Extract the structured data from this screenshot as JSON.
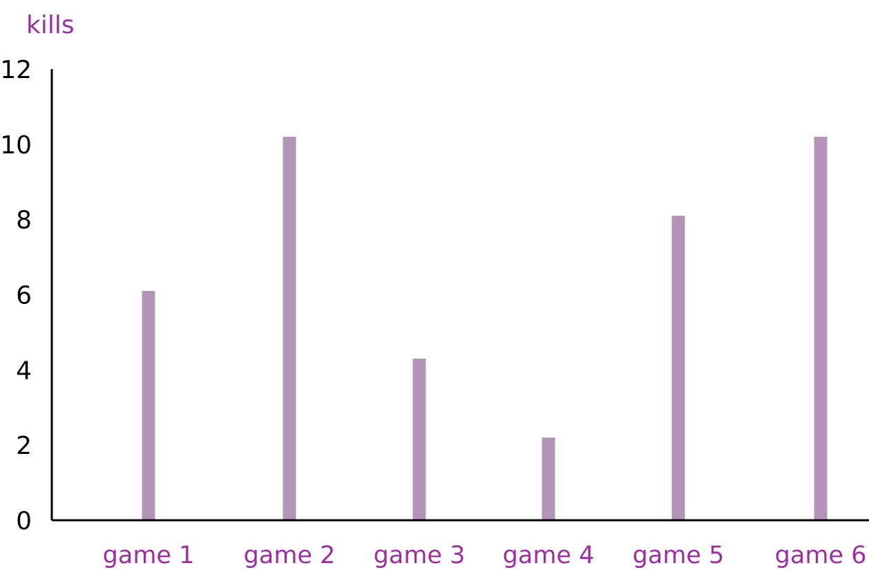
{
  "chart_data": {
    "type": "bar",
    "ylabel": "kills",
    "xlabel": "",
    "title": "",
    "categories": [
      "game 1",
      "game 2",
      "game 3",
      "game 4",
      "game 5",
      "game 6"
    ],
    "values": [
      6.1,
      10.2,
      4.3,
      2.2,
      8.1,
      10.2
    ],
    "ylim": [
      0,
      12
    ],
    "yticks": [
      "0",
      "2",
      "4",
      "6",
      "8",
      "10",
      "12"
    ],
    "grid": false,
    "legend": "none"
  },
  "colors": {
    "bar": "#b393b8",
    "label": "#9b2fa0",
    "axis": "#000000",
    "tick_text": "#000000"
  }
}
